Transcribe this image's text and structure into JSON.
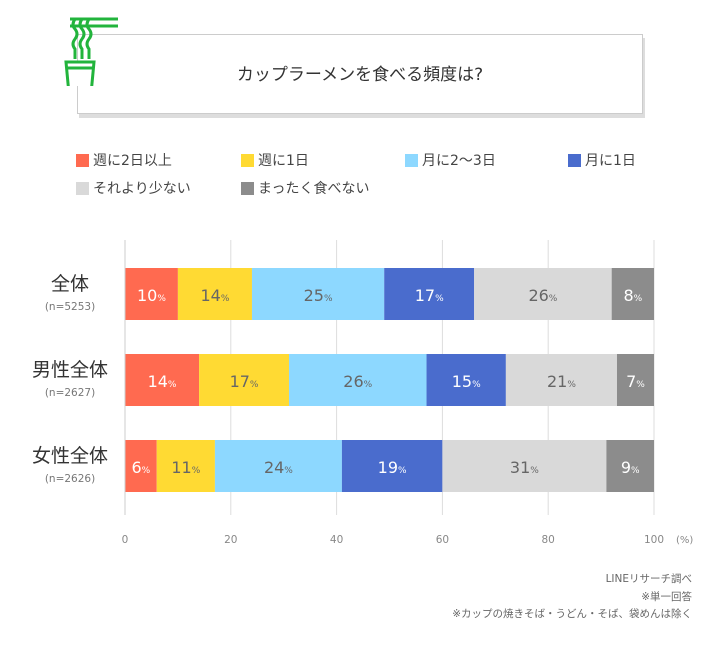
{
  "title": "カップラーメンを食べる頻度は?",
  "icon": "cup-noodle-icon",
  "chart_data": {
    "type": "bar",
    "orientation": "horizontal-stacked",
    "categories": [
      "全体",
      "男性全体",
      "女性全体"
    ],
    "sample_sizes": [
      "(n=5253)",
      "(n=2627)",
      "(n=2626)"
    ],
    "series": [
      {
        "name": "週に2日以上",
        "color": "#FF6A50",
        "label_color": "#ffffff",
        "values": [
          10,
          14,
          6
        ]
      },
      {
        "name": "週に1日",
        "color": "#FFDA33",
        "label_color": "#666666",
        "values": [
          14,
          17,
          11
        ]
      },
      {
        "name": "月に2〜3日",
        "color": "#8DD8FF",
        "label_color": "#666666",
        "values": [
          25,
          26,
          24
        ]
      },
      {
        "name": "月に1日",
        "color": "#4A6CCD",
        "label_color": "#ffffff",
        "values": [
          17,
          15,
          19
        ]
      },
      {
        "name": "それより少ない",
        "color": "#D9D9D9",
        "label_color": "#666666",
        "values": [
          26,
          21,
          31
        ]
      },
      {
        "name": "まったく食べない",
        "color": "#8C8C8C",
        "label_color": "#ffffff",
        "values": [
          8,
          7,
          9
        ]
      }
    ],
    "xlim": [
      0,
      100
    ],
    "xticks": [
      "0",
      "20",
      "40",
      "60",
      "80",
      "100"
    ],
    "xunit": "(%)",
    "value_suffix": "%",
    "grid": true,
    "legend_position": "top"
  },
  "notes": [
    "LINEリサーチ調べ",
    "※単一回答",
    "※カップの焼きそば・うどん・そば、袋めんは除く"
  ],
  "accent_color": "#22B43C"
}
